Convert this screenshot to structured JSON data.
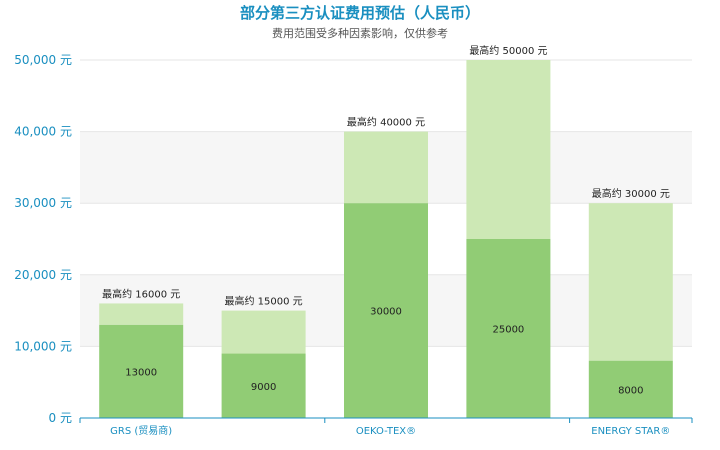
{
  "chart_data": {
    "type": "bar",
    "stacked": true,
    "title": "部分第三方认证费用预估（人民币）",
    "subtitle": "费用范围受多种因素影响，仅供参考",
    "xlabel": "",
    "ylabel": "",
    "ylim": [
      0,
      50000
    ],
    "yticks": [
      0,
      10000,
      20000,
      30000,
      40000,
      50000
    ],
    "ytick_labels": [
      "0 元",
      "10,000 元",
      "20,000 元",
      "30,000 元",
      "40,000 元",
      "50,000 元"
    ],
    "x_axis_labels": [
      "GRS (贸易商)",
      "",
      "OEKO-TEX®",
      "",
      "ENERGY STAR®"
    ],
    "grid": true,
    "colors": {
      "base": "#91cc75",
      "range": "#cde8b5",
      "band": "#f6f6f6",
      "axis": "#1a8fc0"
    },
    "bars": [
      {
        "base": 13000,
        "max": 16000,
        "base_label": "13000",
        "top_label": "最高约 16000 元"
      },
      {
        "base": 9000,
        "max": 15000,
        "base_label": "9000",
        "top_label": "最高约 15000 元"
      },
      {
        "base": 30000,
        "max": 40000,
        "base_label": "30000",
        "top_label": "最高约 40000 元"
      },
      {
        "base": 25000,
        "max": 50000,
        "base_label": "25000",
        "top_label": "最高约 50000 元"
      },
      {
        "base": 8000,
        "max": 30000,
        "base_label": "8000",
        "top_label": "最高约 30000 元"
      }
    ]
  }
}
